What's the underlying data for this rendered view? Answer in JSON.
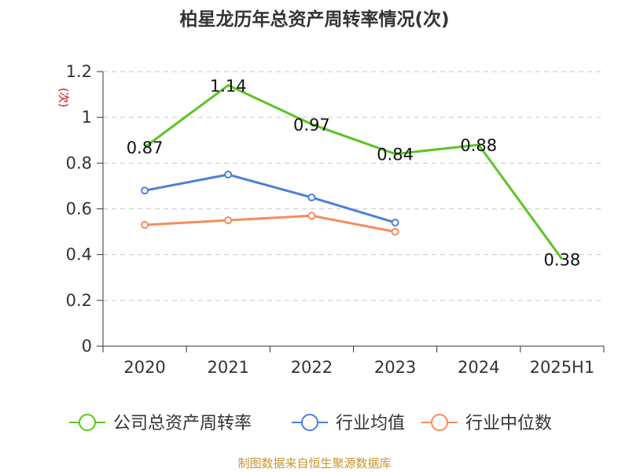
{
  "chart_data": {
    "type": "line",
    "title": "柏星龙历年总资产周转率情况(次)",
    "ylabel": "(次)",
    "xlabel": "",
    "categories": [
      "2020",
      "2021",
      "2022",
      "2023",
      "2024",
      "2025H1"
    ],
    "ylim": [
      0,
      1.2
    ],
    "yticks": [
      "0",
      "0.2",
      "0.4",
      "0.6",
      "0.8",
      "1",
      "1.2"
    ],
    "grid": true,
    "legend_position": "bottom",
    "series": [
      {
        "name": "公司总资产周转率",
        "color": "#5cc422",
        "values": [
          0.87,
          1.14,
          0.97,
          0.84,
          0.88,
          0.38
        ],
        "labels": [
          "0.87",
          "1.14",
          "0.97",
          "0.84",
          "0.88",
          "0.38"
        ],
        "markers": false
      },
      {
        "name": "行业均值",
        "color": "#4d7fda",
        "values": [
          0.68,
          0.75,
          0.65,
          0.54,
          null,
          null
        ],
        "markers": true
      },
      {
        "name": "行业中位数",
        "color": "#f68c5a",
        "values": [
          0.53,
          0.55,
          0.57,
          0.5,
          null,
          null
        ],
        "markers": true
      }
    ]
  },
  "source_text": "制图数据来自恒生聚源数据库"
}
